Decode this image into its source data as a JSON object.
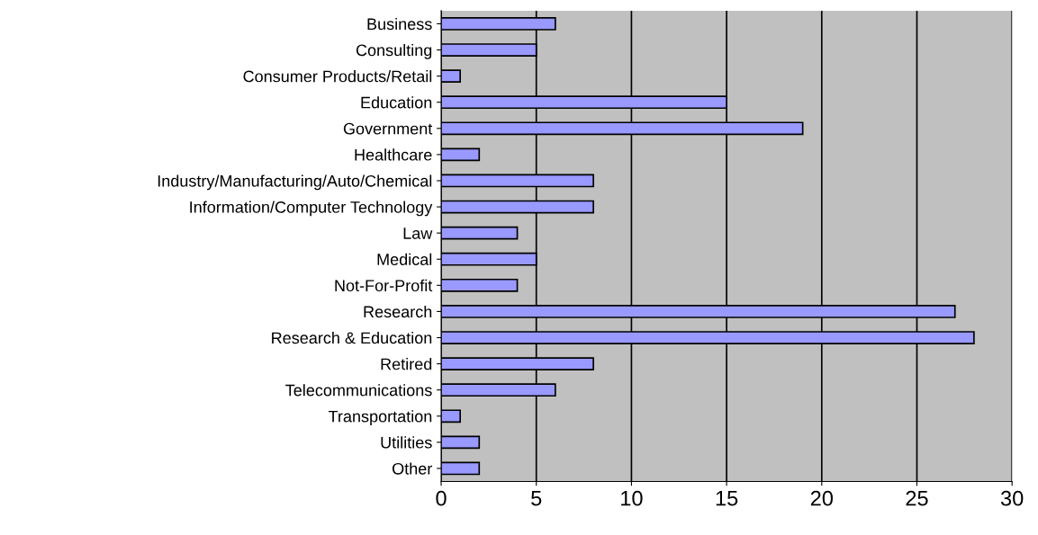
{
  "chart_data": {
    "type": "bar",
    "orientation": "horizontal",
    "categories": [
      "Business",
      "Consulting",
      "Consumer Products/Retail",
      "Education",
      "Government",
      "Healthcare",
      "Industry/Manufacturing/Auto/Chemical",
      "Information/Computer Technology",
      "Law",
      "Medical",
      "Not-For-Profit",
      "Research",
      "Research & Education",
      "Retired",
      "Telecommunications",
      "Transportation",
      "Utilities",
      "Other"
    ],
    "values": [
      6,
      5,
      1,
      15,
      19,
      2,
      8,
      8,
      4,
      5,
      4,
      27,
      28,
      8,
      6,
      1,
      2,
      2
    ],
    "color": "#9999ff",
    "xlim": [
      0,
      30
    ],
    "xticks": [
      0,
      5,
      10,
      15,
      20,
      25,
      30
    ],
    "grid": "x"
  }
}
